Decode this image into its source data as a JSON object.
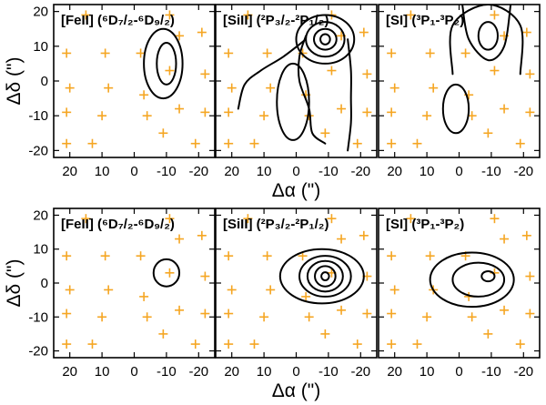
{
  "chart_data": {
    "type": "contour",
    "colors": {
      "marker": "#f5a623",
      "contour": "#000000"
    },
    "xlabel": "Δα (\")",
    "ylabel": "Δδ (\")",
    "xlim": [
      25,
      -25
    ],
    "ylim": [
      -22,
      22
    ],
    "x_ticks": [
      20,
      10,
      0,
      -10,
      -20
    ],
    "y_ticks": [
      20,
      10,
      0,
      -10,
      -20
    ],
    "markers": [
      {
        "x": 15,
        "y": 19
      },
      {
        "x": -11,
        "y": 19
      },
      {
        "x": 21,
        "y": 8
      },
      {
        "x": 9,
        "y": 8
      },
      {
        "x": -2,
        "y": 8
      },
      {
        "x": -14,
        "y": 13
      },
      {
        "x": -21,
        "y": 14
      },
      {
        "x": 20,
        "y": -2
      },
      {
        "x": 8,
        "y": -2
      },
      {
        "x": -3,
        "y": -4
      },
      {
        "x": -11,
        "y": 3
      },
      {
        "x": -22,
        "y": 2
      },
      {
        "x": 21,
        "y": -9
      },
      {
        "x": 10,
        "y": -10
      },
      {
        "x": -4,
        "y": -10
      },
      {
        "x": -14,
        "y": -8
      },
      {
        "x": -22,
        "y": -9
      },
      {
        "x": 21,
        "y": -18
      },
      {
        "x": 13,
        "y": -18
      },
      {
        "x": -9,
        "y": -15
      },
      {
        "x": -19,
        "y": -18
      }
    ],
    "panels": [
      {
        "row": "top",
        "col": 0,
        "title": "[FeII] (⁶D₇/₂-⁶D₉/₂)",
        "contours": [
          {
            "cx": -9,
            "cy": 5,
            "rx": 6,
            "ry": 10
          },
          {
            "cx": -10,
            "cy": 5,
            "rx": 3,
            "ry": 6
          }
        ],
        "paths": []
      },
      {
        "row": "top",
        "col": 1,
        "title": "[SiII] (²P₃/₂-²P₁/₂)",
        "contours": [
          {
            "cx": -9,
            "cy": 12,
            "rx": 1.5,
            "ry": 1.5
          },
          {
            "cx": -9,
            "cy": 12,
            "rx": 3.5,
            "ry": 3
          },
          {
            "cx": -9,
            "cy": 12,
            "rx": 6,
            "ry": 5
          },
          {
            "cx": -9,
            "cy": 12,
            "rx": 9,
            "ry": 7
          },
          {
            "cx": 1,
            "cy": -6,
            "rx": 5,
            "ry": 11
          }
        ],
        "paths": [
          [
            [
              -3,
              13
            ],
            [
              -1,
              7
            ],
            [
              -1,
              0
            ],
            [
              -4,
              -8
            ],
            [
              -5,
              -15
            ],
            [
              -9,
              -18
            ]
          ],
          [
            [
              18,
              -8
            ],
            [
              16,
              -1
            ],
            [
              11,
              3
            ],
            [
              4,
              7
            ],
            [
              -3,
              12
            ]
          ],
          [
            [
              -16,
              12
            ],
            [
              -17,
              3
            ],
            [
              -17,
              -5
            ],
            [
              -17,
              -12
            ],
            [
              -16,
              -20
            ]
          ]
        ]
      },
      {
        "row": "top",
        "col": 2,
        "title": "[SI] (³P₁-³P₂)",
        "contours": [
          {
            "cx": -9,
            "cy": 13,
            "rx": 3,
            "ry": 4
          },
          {
            "cx": 1,
            "cy": -8,
            "rx": 4,
            "ry": 7
          }
        ],
        "paths": [
          [
            [
              2,
              2
            ],
            [
              2,
              16
            ],
            [
              -9,
              22
            ],
            [
              -19,
              16
            ],
            [
              -19,
              2
            ]
          ],
          [
            [
              -1,
              22
            ],
            [
              -3,
              12
            ],
            [
              -9,
              6
            ],
            [
              -14,
              10
            ],
            [
              -16,
              22
            ]
          ]
        ]
      },
      {
        "row": "bottom",
        "col": 0,
        "title": "[FeII] (⁶D₇/₂-⁶D₉/₂)",
        "contours": [
          {
            "cx": -10,
            "cy": 3,
            "rx": 4,
            "ry": 4
          }
        ],
        "paths": []
      },
      {
        "row": "bottom",
        "col": 1,
        "title": "[SiII] (²P₃/₂-²P₁/₂)",
        "contours": [
          {
            "cx": -9,
            "cy": 2,
            "rx": 1.2,
            "ry": 1.2
          },
          {
            "cx": -9,
            "cy": 2,
            "rx": 3.2,
            "ry": 3
          },
          {
            "cx": -9,
            "cy": 2,
            "rx": 5.5,
            "ry": 4.5
          },
          {
            "cx": -9,
            "cy": 2,
            "rx": 8,
            "ry": 6
          },
          {
            "cx": -8,
            "cy": 2,
            "rx": 13,
            "ry": 8
          }
        ],
        "paths": []
      },
      {
        "row": "bottom",
        "col": 2,
        "title": "[SI] (³P₁-³P₂)",
        "contours": [
          {
            "cx": -9,
            "cy": 2,
            "rx": 2,
            "ry": 1.5
          },
          {
            "cx": -6,
            "cy": 1,
            "rx": 8,
            "ry": 5
          },
          {
            "cx": -4,
            "cy": 1,
            "rx": 13,
            "ry": 8
          }
        ],
        "paths": []
      }
    ]
  }
}
